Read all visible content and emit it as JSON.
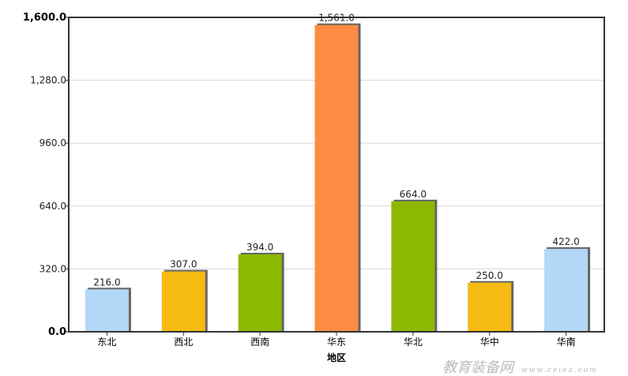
{
  "chart_data": {
    "type": "bar",
    "categories": [
      "东北",
      "西北",
      "西南",
      "华东",
      "华北",
      "华中",
      "华南"
    ],
    "values": [
      216.0,
      307.0,
      394.0,
      1561.0,
      664.0,
      250.0,
      422.0
    ],
    "data_labels": [
      "216.0",
      "307.0",
      "394.0",
      "1,561.0",
      "664.0",
      "250.0",
      "422.0"
    ],
    "colors": [
      "#b3d8f7",
      "#f5bb12",
      "#8cb800",
      "#ff8c42",
      "#8cb800",
      "#f5bb12",
      "#b3d8f7"
    ],
    "title": "",
    "xlabel": "地区",
    "ylabel": "",
    "ylim": [
      0,
      1600
    ],
    "yticks": [
      0,
      320,
      640,
      960,
      1280,
      1600
    ],
    "ytick_labels": [
      "0.0",
      "320.0",
      "640.0",
      "960.0",
      "1,280.0",
      "1,600.0"
    ],
    "grid": true,
    "legend": "none"
  },
  "watermark": {
    "text": "教育装备网",
    "url": "www.ceiea.com"
  }
}
